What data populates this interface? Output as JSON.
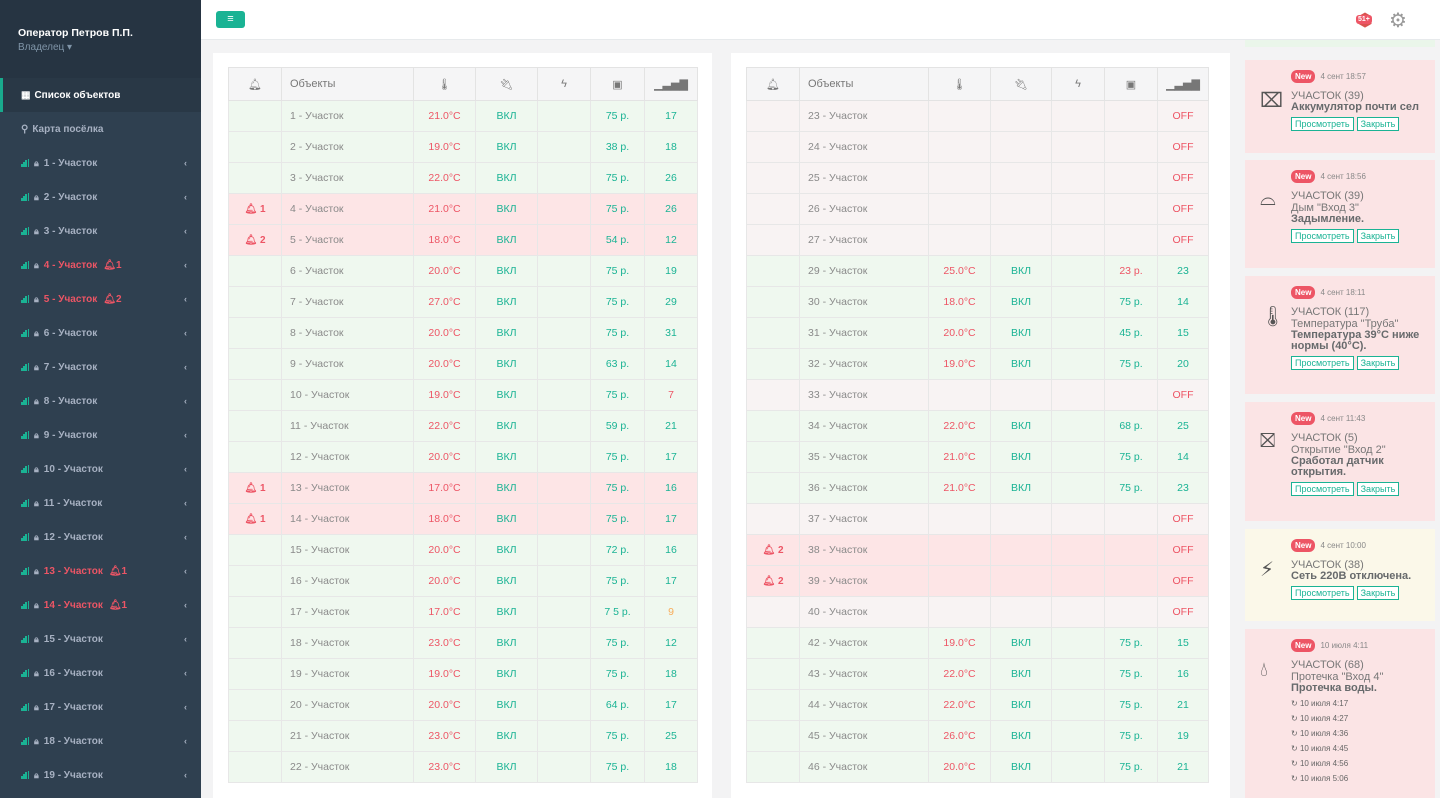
{
  "user": {
    "name": "Оператор Петров П.П.",
    "role": "Владелец"
  },
  "nav": {
    "objects": "Список объектов",
    "map": "Карта посёлка"
  },
  "sidebar_items": [
    {
      "label": "1 - Участок",
      "bell": ""
    },
    {
      "label": "2 - Участок",
      "bell": ""
    },
    {
      "label": "3 - Участок",
      "bell": ""
    },
    {
      "label": "4 - Участок",
      "bell": "1"
    },
    {
      "label": "5 - Участок",
      "bell": "2"
    },
    {
      "label": "6 - Участок",
      "bell": ""
    },
    {
      "label": "7 - Участок",
      "bell": ""
    },
    {
      "label": "8 - Участок",
      "bell": ""
    },
    {
      "label": "9 - Участок",
      "bell": ""
    },
    {
      "label": "10 - Участок",
      "bell": ""
    },
    {
      "label": "11 - Участок",
      "bell": ""
    },
    {
      "label": "12 - Участок",
      "bell": ""
    },
    {
      "label": "13 - Участок",
      "bell": "1"
    },
    {
      "label": "14 - Участок",
      "bell": "1"
    },
    {
      "label": "15 - Участок",
      "bell": ""
    },
    {
      "label": "16 - Участок",
      "bell": ""
    },
    {
      "label": "17 - Участок",
      "bell": ""
    },
    {
      "label": "18 - Участок",
      "bell": ""
    },
    {
      "label": "19 - Участок",
      "bell": ""
    }
  ],
  "header": {
    "notif_badge": "51+"
  },
  "table": {
    "col_objects": "Объекты"
  },
  "left_rows": [
    {
      "a": "",
      "o": "1 - Участок",
      "t": "21.0°C",
      "p": "ВКЛ",
      "m": "75 р.",
      "s": "17",
      "st": "ok"
    },
    {
      "a": "",
      "o": "2 - Участок",
      "t": "19.0°C",
      "p": "ВКЛ",
      "m": "38 р.",
      "s": "18",
      "st": "ok"
    },
    {
      "a": "",
      "o": "3 - Участок",
      "t": "22.0°C",
      "p": "ВКЛ",
      "m": "75 р.",
      "s": "26",
      "st": "ok"
    },
    {
      "a": "1",
      "o": "4 - Участок",
      "t": "21.0°C",
      "p": "ВКЛ",
      "m": "75 р.",
      "s": "26",
      "st": "alarm"
    },
    {
      "a": "2",
      "o": "5 - Участок",
      "t": "18.0°C",
      "p": "ВКЛ",
      "m": "54 р.",
      "s": "12",
      "st": "alarm"
    },
    {
      "a": "",
      "o": "6 - Участок",
      "t": "20.0°C",
      "p": "ВКЛ",
      "m": "75 р.",
      "s": "19",
      "st": "ok"
    },
    {
      "a": "",
      "o": "7 - Участок",
      "t": "27.0°C",
      "p": "ВКЛ",
      "m": "75 р.",
      "s": "29",
      "st": "ok"
    },
    {
      "a": "",
      "o": "8 - Участок",
      "t": "20.0°C",
      "p": "ВКЛ",
      "m": "75 р.",
      "s": "31",
      "st": "ok"
    },
    {
      "a": "",
      "o": "9 - Участок",
      "t": "20.0°C",
      "p": "ВКЛ",
      "m": "63 р.",
      "s": "14",
      "st": "ok"
    },
    {
      "a": "",
      "o": "10 - Участок",
      "t": "19.0°C",
      "p": "ВКЛ",
      "m": "75 р.",
      "s": "7",
      "st": "ok",
      "sc": "red"
    },
    {
      "a": "",
      "o": "11 - Участок",
      "t": "22.0°C",
      "p": "ВКЛ",
      "m": "59 р.",
      "s": "21",
      "st": "ok"
    },
    {
      "a": "",
      "o": "12 - Участок",
      "t": "20.0°C",
      "p": "ВКЛ",
      "m": "75 р.",
      "s": "17",
      "st": "ok"
    },
    {
      "a": "1",
      "o": "13 - Участок",
      "t": "17.0°C",
      "p": "ВКЛ",
      "m": "75 р.",
      "s": "16",
      "st": "alarm"
    },
    {
      "a": "1",
      "o": "14 - Участок",
      "t": "18.0°C",
      "p": "ВКЛ",
      "m": "75 р.",
      "s": "17",
      "st": "alarm"
    },
    {
      "a": "",
      "o": "15 - Участок",
      "t": "20.0°C",
      "p": "ВКЛ",
      "m": "72 р.",
      "s": "16",
      "st": "ok"
    },
    {
      "a": "",
      "o": "16 - Участок",
      "t": "20.0°C",
      "p": "ВКЛ",
      "m": "75 р.",
      "s": "17",
      "st": "ok"
    },
    {
      "a": "",
      "o": "17 - Участок",
      "t": "17.0°C",
      "p": "ВКЛ",
      "m": "7 5 р.",
      "s": "9",
      "st": "ok",
      "sc": "orange"
    },
    {
      "a": "",
      "o": "18 - Участок",
      "t": "23.0°C",
      "p": "ВКЛ",
      "m": "75 р.",
      "s": "12",
      "st": "ok"
    },
    {
      "a": "",
      "o": "19 - Участок",
      "t": "19.0°C",
      "p": "ВКЛ",
      "m": "75 р.",
      "s": "18",
      "st": "ok"
    },
    {
      "a": "",
      "o": "20 - Участок",
      "t": "20.0°C",
      "p": "ВКЛ",
      "m": "64 р.",
      "s": "17",
      "st": "ok"
    },
    {
      "a": "",
      "o": "21 - Участок",
      "t": "23.0°C",
      "p": "ВКЛ",
      "m": "75 р.",
      "s": "25",
      "st": "ok"
    },
    {
      "a": "",
      "o": "22 - Участок",
      "t": "23.0°C",
      "p": "ВКЛ",
      "m": "75 р.",
      "s": "18",
      "st": "ok"
    }
  ],
  "right_rows": [
    {
      "a": "",
      "o": "23 - Участок",
      "t": "",
      "p": "",
      "m": "",
      "s": "OFF",
      "st": "off",
      "sc": "red"
    },
    {
      "a": "",
      "o": "24 - Участок",
      "t": "",
      "p": "",
      "m": "",
      "s": "OFF",
      "st": "off",
      "sc": "red"
    },
    {
      "a": "",
      "o": "25 - Участок",
      "t": "",
      "p": "",
      "m": "",
      "s": "OFF",
      "st": "off",
      "sc": "red"
    },
    {
      "a": "",
      "o": "26 - Участок",
      "t": "",
      "p": "",
      "m": "",
      "s": "OFF",
      "st": "off",
      "sc": "red"
    },
    {
      "a": "",
      "o": "27 - Участок",
      "t": "",
      "p": "",
      "m": "",
      "s": "OFF",
      "st": "off",
      "sc": "red"
    },
    {
      "a": "",
      "o": "29 - Участок",
      "t": "25.0°C",
      "p": "ВКЛ",
      "m": "23  р.",
      "s": "23",
      "st": "ok",
      "mc": "red"
    },
    {
      "a": "",
      "o": "30 - Участок",
      "t": "18.0°C",
      "p": "ВКЛ",
      "m": "75 р.",
      "s": "14",
      "st": "ok"
    },
    {
      "a": "",
      "o": "31 - Участок",
      "t": "20.0°C",
      "p": "ВКЛ",
      "m": "45 р.",
      "s": "15",
      "st": "ok"
    },
    {
      "a": "",
      "o": "32 - Участок",
      "t": "19.0°C",
      "p": "ВКЛ",
      "m": "75 р.",
      "s": "20",
      "st": "ok"
    },
    {
      "a": "",
      "o": "33 - Участок",
      "t": "",
      "p": "",
      "m": "",
      "s": "OFF",
      "st": "off",
      "sc": "red"
    },
    {
      "a": "",
      "o": "34 - Участок",
      "t": "22.0°C",
      "p": "ВКЛ",
      "m": "68 р.",
      "s": "25",
      "st": "ok"
    },
    {
      "a": "",
      "o": "35 - Участок",
      "t": "21.0°C",
      "p": "ВКЛ",
      "m": "75 р.",
      "s": "14",
      "st": "ok"
    },
    {
      "a": "",
      "o": "36 - Участок",
      "t": "21.0°C",
      "p": "ВКЛ",
      "m": "75 р.",
      "s": "23",
      "st": "ok"
    },
    {
      "a": "",
      "o": "37 - Участок",
      "t": "",
      "p": "",
      "m": "",
      "s": "OFF",
      "st": "off",
      "sc": "red"
    },
    {
      "a": "2",
      "o": "38 - Участок",
      "t": "",
      "p": "",
      "m": "",
      "s": "OFF",
      "st": "alarm",
      "sc": "red"
    },
    {
      "a": "2",
      "o": "39 - Участок",
      "t": "",
      "p": "",
      "m": "",
      "s": "OFF",
      "st": "alarm",
      "sc": "red"
    },
    {
      "a": "",
      "o": "40 - Участок",
      "t": "",
      "p": "",
      "m": "",
      "s": "OFF",
      "st": "off",
      "sc": "red"
    },
    {
      "a": "",
      "o": "42 - Участок",
      "t": "19.0°C",
      "p": "ВКЛ",
      "m": "75 р.",
      "s": "15",
      "st": "ok"
    },
    {
      "a": "",
      "o": "43 - Участок",
      "t": "22.0°C",
      "p": "ВКЛ",
      "m": "75 р.",
      "s": "16",
      "st": "ok"
    },
    {
      "a": "",
      "o": "44 - Участок",
      "t": "22.0°C",
      "p": "ВКЛ",
      "m": "75 р.",
      "s": "21",
      "st": "ok"
    },
    {
      "a": "",
      "o": "45 - Участок",
      "t": "26.0°C",
      "p": "ВКЛ",
      "m": "75 р.",
      "s": "19",
      "st": "ok"
    },
    {
      "a": "",
      "o": "46 - Участок",
      "t": "20.0°C",
      "p": "ВКЛ",
      "m": "75 р.",
      "s": "21",
      "st": "ok"
    }
  ],
  "notifications": [
    {
      "new": "New",
      "date": "4 сент 18:57",
      "t1": "УЧАСТОК (39)",
      "t2": "",
      "t3": "Аккумулятор почти сел",
      "view": "Просмотреть",
      "close": "Закрыть",
      "kind": "red",
      "icon": "battery-icon"
    },
    {
      "new": "New",
      "date": "4 сент 18:56",
      "t1": "УЧАСТОК (39)",
      "t2": "Дым \"Вход 3\"",
      "t3": "Задымление.",
      "view": "Просмотреть",
      "close": "Закрыть",
      "kind": "red",
      "icon": "smoke-detector-icon"
    },
    {
      "new": "New",
      "date": "4 сент 18:11",
      "t1": "УЧАСТОК (117)",
      "t2": "Температура \"Труба\"",
      "t3": "Температура 39°С ниже нормы (40°С).",
      "view": "Просмотреть",
      "close": "Закрыть",
      "kind": "red",
      "icon": "thermometer-icon"
    },
    {
      "new": "New",
      "date": "4 сент 11:43",
      "t1": "УЧАСТОК (5)",
      "t2": "Открытие \"Вход 2\"",
      "t3": "Сработал датчик открытия.",
      "view": "Просмотреть",
      "close": "Закрыть",
      "kind": "red",
      "icon": "door-exit-icon"
    },
    {
      "new": "New",
      "date": "4 сент 10:00",
      "t1": "УЧАСТОК (38)",
      "t2": "",
      "t3": "Сеть 220В отключена.",
      "view": "Просмотреть",
      "close": "Закрыть",
      "kind": "yel",
      "icon": "power-off-icon"
    },
    {
      "new": "New",
      "date": "10 июля 4:11",
      "t1": "УЧАСТОК (68)",
      "t2": "Протечка \"Вход 4\"",
      "t3": "Протечка воды.",
      "view": "",
      "close": "",
      "kind": "red",
      "icon": "water-drop-icon",
      "history": [
        "10 июля 4:17",
        "10 июля 4:27",
        "10 июля 4:36",
        "10 июля 4:45",
        "10 июля 4:56",
        "10 июля 5:06"
      ]
    }
  ]
}
